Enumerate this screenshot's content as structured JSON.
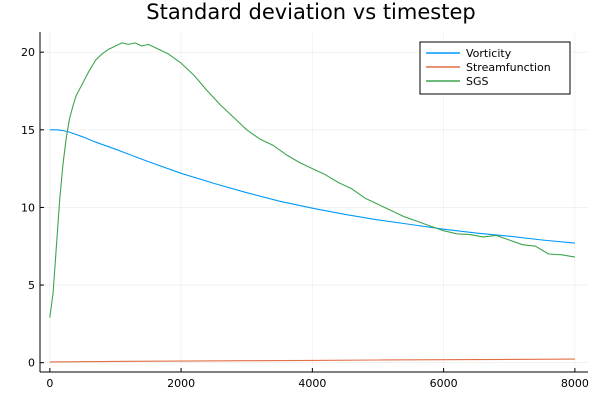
{
  "chart_data": {
    "type": "line",
    "title": "Standard deviation vs timestep",
    "xlabel": "",
    "ylabel": "",
    "xlim": [
      -150,
      8200
    ],
    "ylim": [
      -0.6,
      21.3
    ],
    "xticks": [
      0,
      2000,
      4000,
      6000,
      8000
    ],
    "yticks": [
      0,
      5,
      10,
      15,
      20
    ],
    "xtick_labels": [
      "0",
      "2000",
      "4000",
      "6000",
      "8000"
    ],
    "ytick_labels": [
      "0",
      "5",
      "10",
      "15",
      "20"
    ],
    "grid": true,
    "legend_position": "top-right",
    "series": [
      {
        "name": "Vorticity",
        "color": "#009AFA",
        "x": [
          0,
          100,
          200,
          300,
          400,
          500,
          700,
          1000,
          1500,
          2000,
          2500,
          3000,
          3500,
          4000,
          4500,
          5000,
          5500,
          6000,
          6500,
          7000,
          7500,
          8000
        ],
        "y": [
          15.0,
          15.0,
          14.95,
          14.85,
          14.7,
          14.55,
          14.2,
          13.75,
          12.95,
          12.2,
          11.55,
          10.95,
          10.4,
          9.95,
          9.55,
          9.2,
          8.9,
          8.6,
          8.35,
          8.15,
          7.9,
          7.7
        ]
      },
      {
        "name": "Streamfunction",
        "color": "#E36F47",
        "x": [
          0,
          1000,
          2000,
          3000,
          4000,
          5000,
          6000,
          7000,
          8000
        ],
        "y": [
          0.05,
          0.08,
          0.1,
          0.13,
          0.15,
          0.17,
          0.19,
          0.21,
          0.23
        ]
      },
      {
        "name": "SGS",
        "color": "#3EA44E",
        "x": [
          0,
          50,
          100,
          150,
          200,
          250,
          300,
          350,
          400,
          500,
          600,
          700,
          800,
          900,
          1000,
          1100,
          1200,
          1300,
          1400,
          1500,
          1600,
          1700,
          1800,
          1900,
          2000,
          2200,
          2400,
          2600,
          2800,
          3000,
          3200,
          3400,
          3600,
          3800,
          4000,
          4200,
          4400,
          4600,
          4800,
          5000,
          5200,
          5400,
          5600,
          5800,
          6000,
          6200,
          6400,
          6600,
          6800,
          7000,
          7200,
          7400,
          7600,
          7800,
          8000
        ],
        "y": [
          2.9,
          4.5,
          7.5,
          10.5,
          12.8,
          14.5,
          15.7,
          16.5,
          17.2,
          18.0,
          18.8,
          19.5,
          19.9,
          20.2,
          20.4,
          20.6,
          20.5,
          20.6,
          20.4,
          20.5,
          20.3,
          20.1,
          19.9,
          19.6,
          19.3,
          18.5,
          17.5,
          16.6,
          15.8,
          15.0,
          14.4,
          14.0,
          13.4,
          12.9,
          12.5,
          12.1,
          11.6,
          11.2,
          10.6,
          10.2,
          9.8,
          9.4,
          9.1,
          8.8,
          8.5,
          8.3,
          8.25,
          8.1,
          8.2,
          7.9,
          7.6,
          7.5,
          7.0,
          6.95,
          6.8
        ]
      }
    ]
  }
}
